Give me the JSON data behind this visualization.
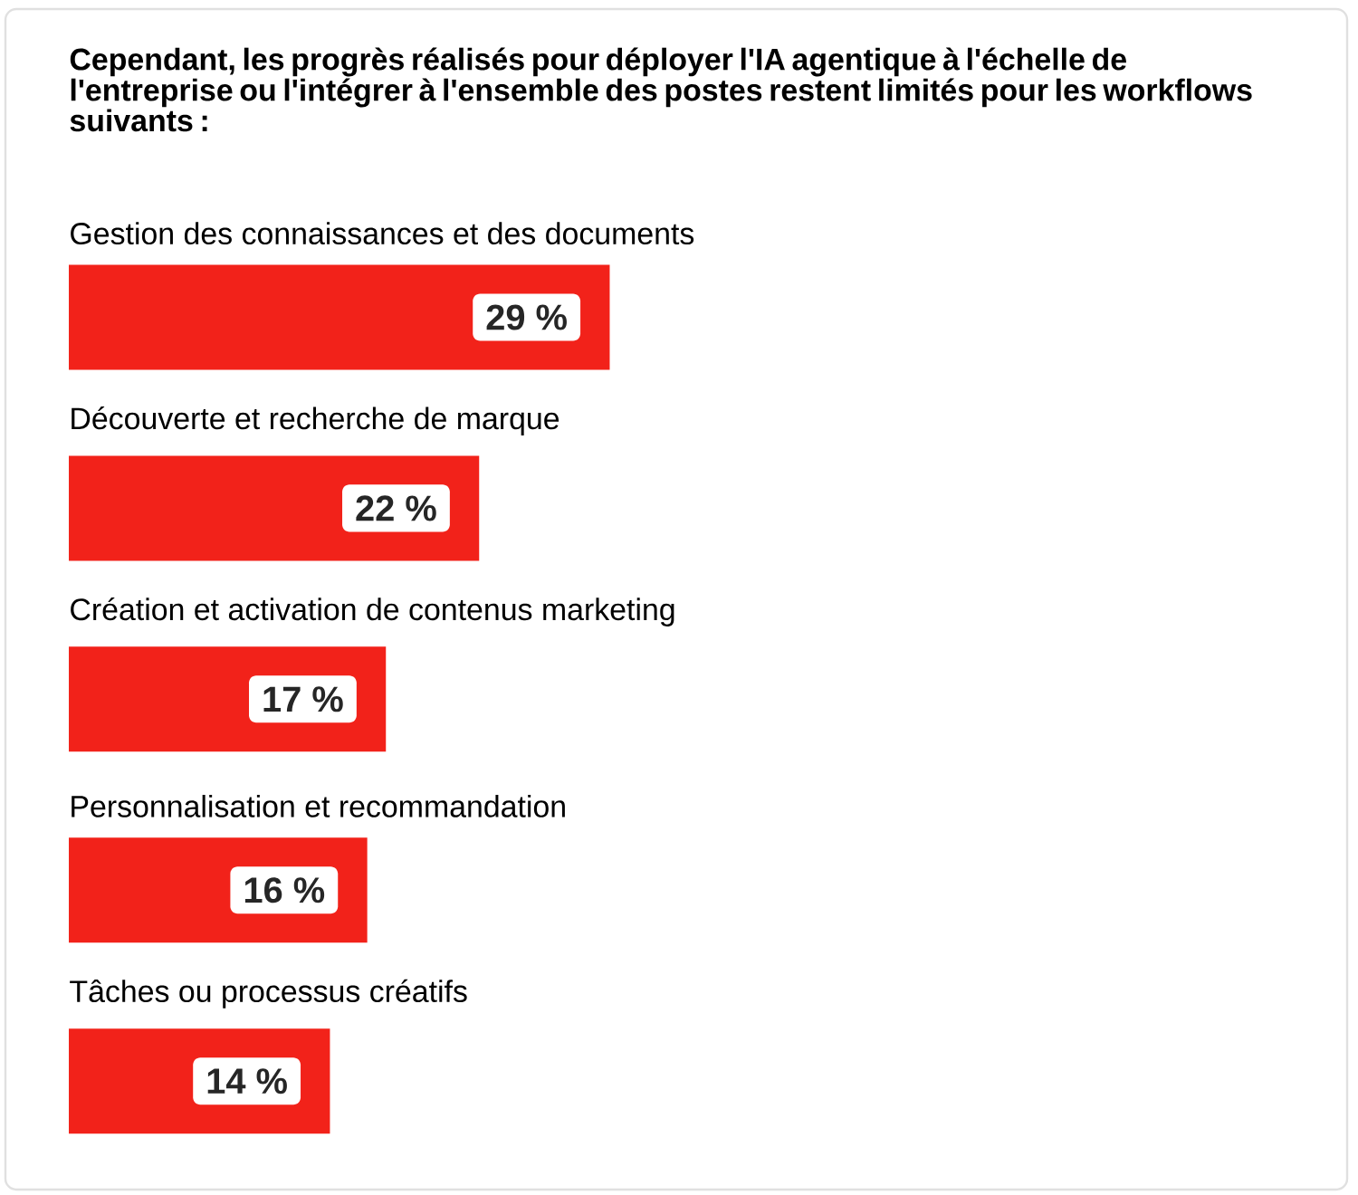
{
  "chart_data": {
    "type": "bar",
    "orientation": "horizontal",
    "title": "Cependant, les progrès réalisés pour déployer l'IA agentique à l'échelle de l'entreprise ou l'intégrer à l'ensemble des postes restent limités pour les workflows suivants :",
    "categories": [
      "Gestion des connaissances et des documents",
      "Découverte et recherche de marque",
      "Création et activation de contenus marketing",
      "Personnalisation et recommandation",
      "Tâches ou processus créatifs"
    ],
    "values": [
      29,
      22,
      17,
      16,
      14
    ],
    "value_labels": [
      "29 %",
      "22 %",
      "17 %",
      "16 %",
      "14 %"
    ],
    "color": "#f2221a"
  }
}
